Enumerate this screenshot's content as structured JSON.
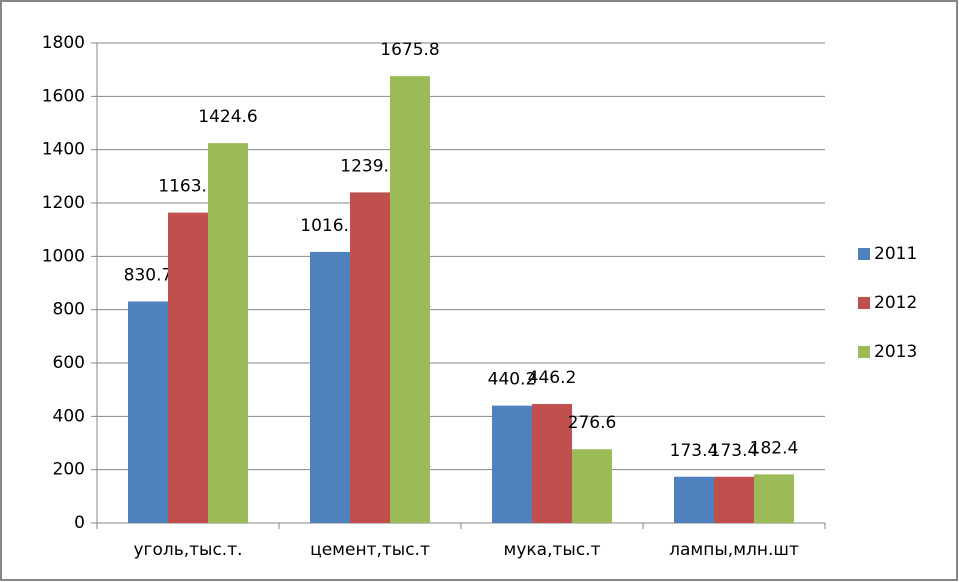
{
  "chart_data": {
    "type": "bar",
    "categories": [
      "уголь,тыс.т.",
      "цемент,тыс.т",
      "мука,тыс.т",
      "лампы,млн.шт"
    ],
    "series": [
      {
        "name": "2011",
        "color": "#4f81bd",
        "values": [
          830.7,
          1016.6,
          440.2,
          173.4
        ]
      },
      {
        "name": "2012",
        "color": "#c0504d",
        "values": [
          1163.9,
          1239.8,
          446.2,
          173.4
        ]
      },
      {
        "name": "2013",
        "color": "#9bbb59",
        "values": [
          1424.6,
          1675.8,
          276.6,
          182.4
        ]
      }
    ],
    "ylim": [
      0,
      1800
    ],
    "yticks": [
      0,
      200,
      400,
      600,
      800,
      1000,
      1200,
      1400,
      1600,
      1800
    ],
    "grid": true,
    "legend": "right"
  }
}
